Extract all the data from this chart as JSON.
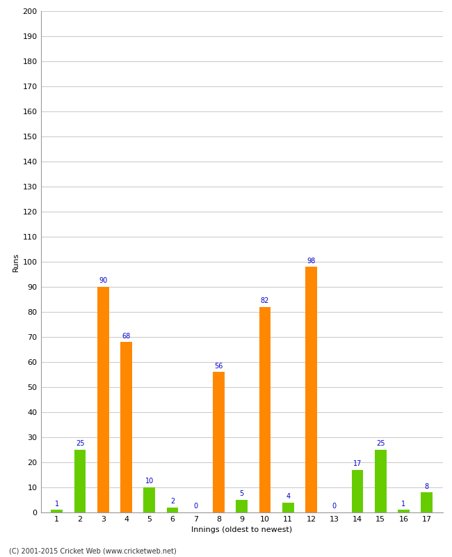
{
  "innings": [
    1,
    2,
    3,
    4,
    5,
    6,
    7,
    8,
    9,
    10,
    11,
    12,
    13,
    14,
    15,
    16,
    17
  ],
  "values": [
    1,
    25,
    90,
    68,
    10,
    2,
    0,
    56,
    5,
    82,
    4,
    98,
    0,
    17,
    25,
    1,
    8
  ],
  "colors": [
    "#66cc00",
    "#66cc00",
    "#ff8800",
    "#ff8800",
    "#66cc00",
    "#66cc00",
    "#66cc00",
    "#ff8800",
    "#66cc00",
    "#ff8800",
    "#66cc00",
    "#ff8800",
    "#66cc00",
    "#66cc00",
    "#66cc00",
    "#66cc00",
    "#66cc00"
  ],
  "xlabel": "Innings (oldest to newest)",
  "ylabel": "Runs",
  "ylim": [
    0,
    200
  ],
  "yticks": [
    0,
    10,
    20,
    30,
    40,
    50,
    60,
    70,
    80,
    90,
    100,
    110,
    120,
    130,
    140,
    150,
    160,
    170,
    180,
    190,
    200
  ],
  "label_color": "#0000cc",
  "label_fontsize": 7,
  "axis_fontsize": 8,
  "copyright": "(C) 2001-2015 Cricket Web (www.cricketweb.net)",
  "bg_color": "#ffffff",
  "grid_color": "#cccccc",
  "bar_width": 0.5
}
